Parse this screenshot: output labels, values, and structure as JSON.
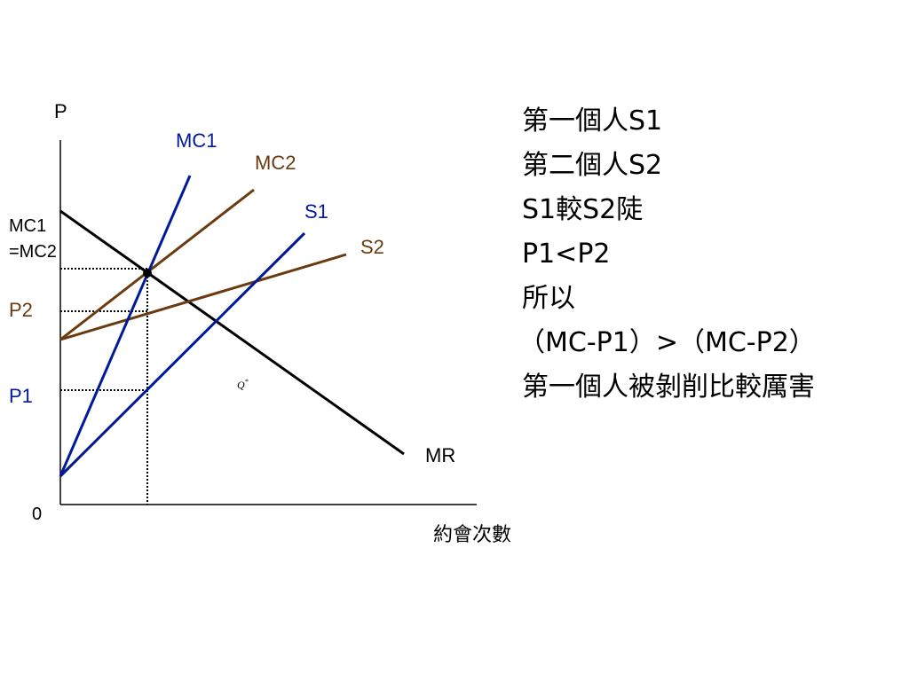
{
  "diagram": {
    "axis_labels": {
      "y": "P",
      "x": "約會次數",
      "origin": "0"
    },
    "curve_labels": {
      "mc1": "MC1",
      "mc2": "MC2",
      "s1": "S1",
      "s2": "S2",
      "mr": "MR"
    },
    "price_labels": {
      "mc_equal_line1": "MC1",
      "mc_equal_line2": "=MC2",
      "p2": "P2",
      "p1": "P1"
    },
    "quantity_label": {
      "base": "Q",
      "superscript": "*"
    },
    "colors": {
      "mc1": "#001a99",
      "s1": "#001a99",
      "mc2": "#6b3a0f",
      "s2": "#6b3a0f",
      "mr": "#000000",
      "p2_label": "#6b3a0f",
      "p1_label": "#001a99"
    }
  },
  "notes": [
    "第一個人S1",
    "第二個人S2",
    "S1較S2陡",
    "P1<P2",
    "所以",
    "（MC-P1）>（MC-P2）",
    "第一個人被剝削比較厲害"
  ]
}
